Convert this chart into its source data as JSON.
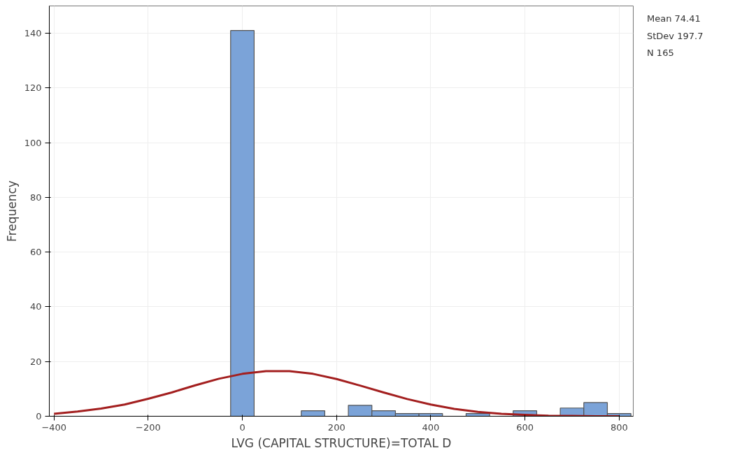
{
  "chart_data": {
    "type": "histogram",
    "xlabel": "LVG (CAPITAL STRUCTURE)=TOTAL D",
    "ylabel": "Frequency",
    "xlim": [
      -410,
      830
    ],
    "xticks": [
      -400,
      -200,
      0,
      200,
      400,
      600,
      800
    ],
    "ylim": [
      0,
      150
    ],
    "yticks": [
      0,
      20,
      40,
      60,
      80,
      100,
      120,
      140
    ],
    "grid": true,
    "annotations": [
      "Mean 74.41",
      "StDev 197.7",
      "N 165"
    ],
    "series": [
      {
        "color": "#7ba3d8",
        "bins": [
          -25,
          25,
          75,
          125,
          175,
          225,
          275,
          325,
          375,
          425,
          475,
          525,
          575,
          625,
          675,
          725,
          775,
          825
        ],
        "values": [
          141,
          0,
          0,
          2,
          0,
          4,
          2,
          1,
          1,
          0,
          1,
          null,
          2,
          0,
          3,
          5,
          1
        ]
      },
      {
        "type": "line",
        "color": "#a31f1f",
        "x": [
          -400,
          -350,
          -300,
          -250,
          -200,
          -150,
          -100,
          -50,
          0,
          50,
          100,
          150,
          200,
          250,
          300,
          350,
          400,
          450,
          500,
          550,
          600,
          650,
          700,
          750,
          800
        ],
        "values": [
          0.9,
          1.7,
          2.8,
          4.3,
          6.4,
          8.7,
          11.3,
          13.7,
          15.5,
          16.5,
          16.5,
          15.5,
          13.6,
          11.2,
          8.7,
          6.3,
          4.3,
          2.7,
          1.6,
          0.9,
          0.5,
          0.2,
          0.1,
          0.0,
          0.0
        ]
      }
    ]
  }
}
